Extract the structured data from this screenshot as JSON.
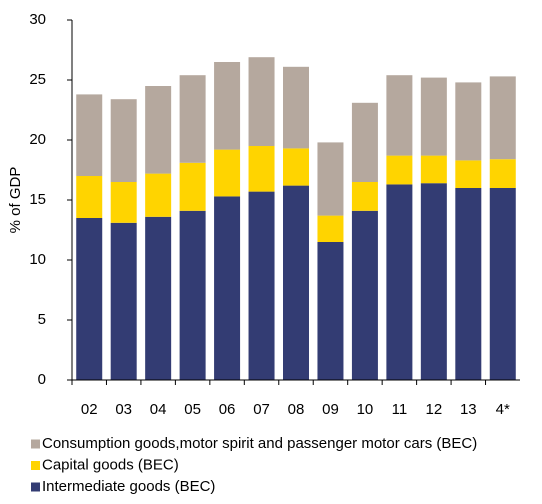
{
  "chart_data": {
    "type": "stacked_bar",
    "ylabel": "% of GDP",
    "categories": [
      "02",
      "03",
      "04",
      "05",
      "06",
      "07",
      "08",
      "09",
      "10",
      "11",
      "12",
      "13",
      "4*"
    ],
    "series": [
      {
        "name": "Consumption goods,motor spirit and passenger motor cars (BEC)",
        "color": "#b5a89e",
        "values": [
          6.8,
          6.9,
          7.3,
          7.3,
          7.3,
          7.4,
          6.8,
          6.1,
          6.6,
          6.7,
          6.5,
          6.5,
          6.9
        ]
      },
      {
        "name": "Capital goods (BEC)",
        "color": "#ffd400",
        "values": [
          3.5,
          3.4,
          3.6,
          4.0,
          3.9,
          3.8,
          3.1,
          2.2,
          2.4,
          2.4,
          2.3,
          2.3,
          2.4
        ]
      },
      {
        "name": "Intermediate goods (BEC)",
        "color": "#333c73",
        "values": [
          13.5,
          13.1,
          13.6,
          14.1,
          15.3,
          15.7,
          16.2,
          11.5,
          14.1,
          16.3,
          16.4,
          16.0,
          16.0
        ]
      }
    ],
    "ylim": [
      0,
      30
    ],
    "yticks": [
      0,
      5,
      10,
      15,
      20,
      25,
      30
    ],
    "grid": false
  }
}
